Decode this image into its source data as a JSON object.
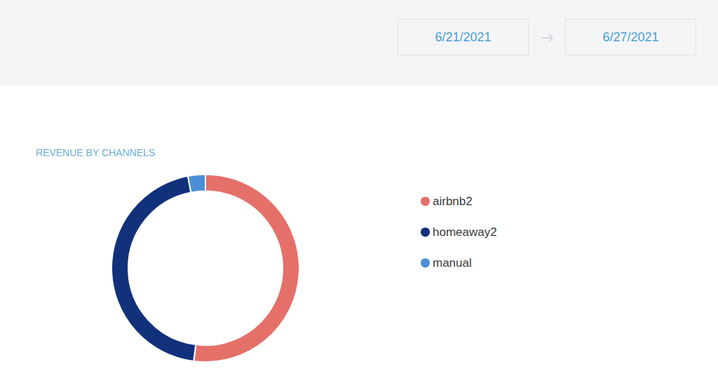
{
  "header": {
    "date_from": "6/21/2021",
    "date_to": "6/27/2021"
  },
  "chart_data": {
    "type": "pie",
    "title": "REVENUE BY CHANNELS",
    "categories": [
      "airbnb2",
      "homeaway2",
      "manual"
    ],
    "values": [
      52,
      45,
      3
    ],
    "colors": [
      "#e5706a",
      "#12317b",
      "#4a8fd6"
    ],
    "legend": "right"
  }
}
